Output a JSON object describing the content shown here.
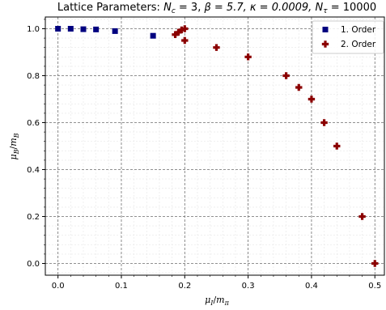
{
  "chart_data": {
    "type": "scatter",
    "title": "Lattice Parameters: N_c = 3, β = 5.7, κ = 0.0009, N_τ = 10000",
    "title_parts": {
      "prefix": "Lattice Parameters: ",
      "nc_sym": "N",
      "nc_sub": "c",
      "nc_val": " = 3, ",
      "beta": "β = 5.7, ",
      "kappa": "κ = 0.0009, ",
      "nt_sym": "N",
      "nt_sub": "τ",
      "nt_val": " = 10000"
    },
    "xlabel": {
      "main": "μ",
      "sub": "I",
      "slash": "/",
      "main2": "m",
      "sub2": "π"
    },
    "ylabel": {
      "main": "μ",
      "sub": "B",
      "slash": "/",
      "main2": "m",
      "sub2": "B"
    },
    "xlim": [
      -0.02,
      0.515
    ],
    "ylim": [
      -0.05,
      1.05
    ],
    "xticks": [
      0.0,
      0.1,
      0.2,
      0.3,
      0.4,
      0.5
    ],
    "xtick_labels": [
      "0.0",
      "0.1",
      "0.2",
      "0.3",
      "0.4",
      "0.5"
    ],
    "yticks": [
      0.0,
      0.2,
      0.4,
      0.6,
      0.8,
      1.0
    ],
    "ytick_labels": [
      "0.0",
      "0.2",
      "0.4",
      "0.6",
      "0.8",
      "1.0"
    ],
    "grid": true,
    "legend_position": "top-right",
    "series": [
      {
        "name": "1. Order",
        "marker": "square",
        "color": "#00007f",
        "x": [
          0.0,
          0.02,
          0.04,
          0.06,
          0.09,
          0.15
        ],
        "y": [
          1.0,
          1.0,
          0.998,
          0.997,
          0.99,
          0.97
        ]
      },
      {
        "name": "2. Order",
        "marker": "plus",
        "color": "#8b0000",
        "x": [
          0.185,
          0.19,
          0.195,
          0.2,
          0.2,
          0.25,
          0.3,
          0.36,
          0.38,
          0.4,
          0.42,
          0.44,
          0.48,
          0.5
        ],
        "y": [
          0.975,
          0.985,
          0.995,
          1.0,
          0.95,
          0.92,
          0.88,
          0.8,
          0.75,
          0.7,
          0.6,
          0.5,
          0.2,
          0.0
        ]
      }
    ]
  }
}
